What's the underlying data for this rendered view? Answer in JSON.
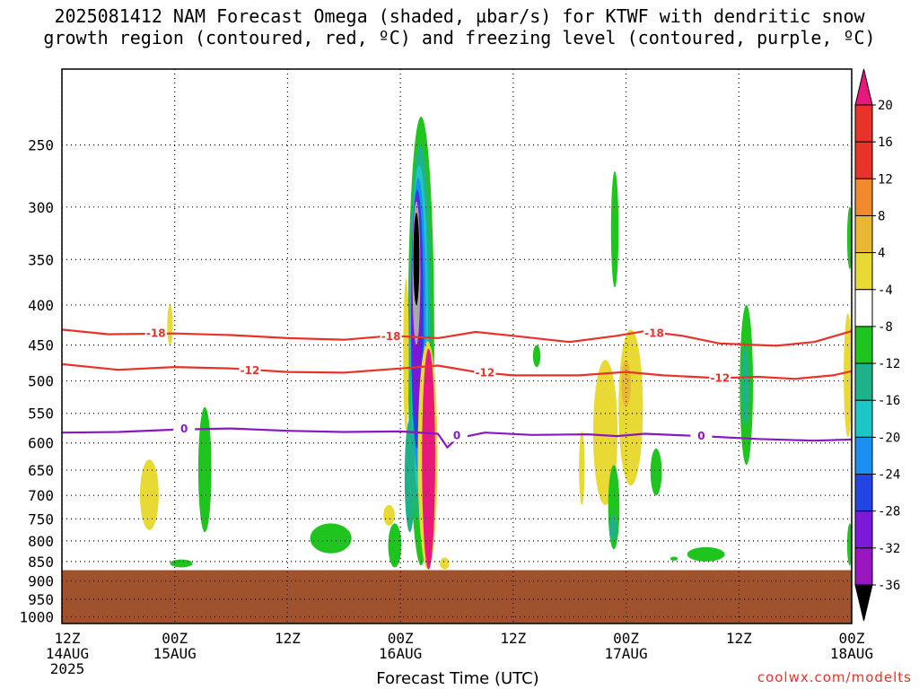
{
  "title": {
    "line1": "2025081412 NAM Forecast Omega (shaded, µbar/s) for KTWF with dendritic snow",
    "line2": "growth region (contoured, red, ºC) and freezing level (contoured, purple, ºC)"
  },
  "credit": "coolwx.com/modelts",
  "chart_data": {
    "type": "heatmap",
    "xlabel": "Forecast Time (UTC)",
    "ylabel": "",
    "x_ticks": [
      {
        "hour": 0,
        "lines": [
          "12Z",
          "14AUG",
          "2025"
        ]
      },
      {
        "hour": 12,
        "lines": [
          "00Z",
          "15AUG"
        ]
      },
      {
        "hour": 24,
        "lines": [
          "12Z"
        ]
      },
      {
        "hour": 36,
        "lines": [
          "00Z",
          "16AUG"
        ]
      },
      {
        "hour": 48,
        "lines": [
          "12Z"
        ]
      },
      {
        "hour": 60,
        "lines": [
          "00Z",
          "17AUG"
        ]
      },
      {
        "hour": 72,
        "lines": [
          "12Z"
        ]
      },
      {
        "hour": 84,
        "lines": [
          "00Z",
          "18AUG"
        ]
      }
    ],
    "xlim_hours": [
      0,
      84
    ],
    "y_ticks": [
      250,
      300,
      350,
      400,
      450,
      500,
      550,
      600,
      650,
      700,
      750,
      800,
      850,
      900,
      950,
      1000
    ],
    "ylim_hpa": [
      200,
      1020
    ],
    "y_scale": "log",
    "grid": true,
    "terrain": {
      "top_hpa": 872,
      "color": "#a0522d"
    },
    "colorbar": {
      "levels": [
        20,
        16,
        12,
        8,
        4,
        -4,
        -8,
        -12,
        -16,
        -20,
        -24,
        -28,
        -32,
        -36
      ],
      "colors": [
        "#e8332a",
        "#e8332a",
        "#f08a2c",
        "#e9b734",
        "#e8d935",
        "#ffffff",
        "#1fc41f",
        "#1fb28a",
        "#1dc6c6",
        "#1c90f0",
        "#2244e0",
        "#7a1ad8",
        "#9a16c0",
        "#a8a8a8",
        "#000000"
      ],
      "top_color": "#e8197d",
      "bottom_color": "#000000"
    },
    "contours": [
      {
        "name": "-18",
        "color": "#e8332a",
        "points": [
          [
            0,
            430
          ],
          [
            5,
            436
          ],
          [
            12,
            435
          ],
          [
            18,
            437
          ],
          [
            24,
            441
          ],
          [
            30,
            443
          ],
          [
            35,
            438
          ],
          [
            40,
            441
          ],
          [
            44,
            433
          ],
          [
            48,
            438
          ],
          [
            54,
            446
          ],
          [
            59,
            438
          ],
          [
            62,
            432
          ],
          [
            66,
            438
          ],
          [
            70,
            448
          ],
          [
            76,
            451
          ],
          [
            80,
            446
          ],
          [
            84,
            432
          ]
        ],
        "labels": [
          [
            10,
            435
          ],
          [
            35,
            439
          ],
          [
            63,
            435
          ]
        ]
      },
      {
        "name": "-12",
        "color": "#e8332a",
        "points": [
          [
            0,
            476
          ],
          [
            6,
            484
          ],
          [
            12,
            480
          ],
          [
            18,
            482
          ],
          [
            24,
            487
          ],
          [
            30,
            488
          ],
          [
            36,
            482
          ],
          [
            40,
            478
          ],
          [
            44,
            487
          ],
          [
            48,
            492
          ],
          [
            55,
            492
          ],
          [
            60,
            487
          ],
          [
            64,
            492
          ],
          [
            70,
            496
          ],
          [
            74,
            494
          ],
          [
            78,
            497
          ],
          [
            82,
            492
          ],
          [
            84,
            486
          ]
        ],
        "labels": [
          [
            20,
            485
          ],
          [
            45,
            488
          ],
          [
            70,
            496
          ]
        ]
      },
      {
        "name": "0",
        "color": "#8a18c0",
        "points": [
          [
            0,
            582
          ],
          [
            6,
            581
          ],
          [
            12,
            577
          ],
          [
            18,
            575
          ],
          [
            24,
            579
          ],
          [
            30,
            581
          ],
          [
            36,
            580
          ],
          [
            40,
            584
          ],
          [
            41,
            608
          ],
          [
            42,
            592
          ],
          [
            45,
            582
          ],
          [
            50,
            586
          ],
          [
            56,
            585
          ],
          [
            59,
            588
          ],
          [
            62,
            584
          ],
          [
            68,
            588
          ],
          [
            74,
            593
          ],
          [
            80,
            596
          ],
          [
            84,
            594
          ]
        ],
        "labels": [
          [
            13,
            576
          ],
          [
            42,
            587
          ],
          [
            68,
            588
          ]
        ]
      }
    ],
    "omega_regions": [
      {
        "level": "-8",
        "color": "#1fc41f",
        "cx": 38.2,
        "cy": 530,
        "rx": 1.4,
        "ry": 300,
        "hpa_top": 230,
        "hpa_bot": 860
      },
      {
        "level": "-12",
        "color": "#1fb28a",
        "cx": 38.1,
        "cy": 500,
        "rx": 1.15,
        "ry": 240,
        "hpa_top": 250,
        "hpa_bot": 760
      },
      {
        "level": "-16",
        "color": "#1dc6c6",
        "cx": 38.0,
        "cy": 480,
        "rx": 0.95,
        "ry": 210,
        "hpa_top": 265,
        "hpa_bot": 700
      },
      {
        "level": "-20",
        "color": "#1c90f0",
        "cx": 37.9,
        "cy": 460,
        "rx": 0.8,
        "ry": 185,
        "hpa_top": 275,
        "hpa_bot": 650
      },
      {
        "level": "-24",
        "color": "#2244e0",
        "cx": 37.8,
        "cy": 440,
        "rx": 0.66,
        "ry": 160,
        "hpa_top": 285,
        "hpa_bot": 610
      },
      {
        "level": "-28",
        "color": "#7a1ad8",
        "cx": 37.7,
        "cy": 420,
        "rx": 0.55,
        "ry": 140,
        "hpa_top": 290,
        "hpa_bot": 560
      },
      {
        "level": "-32",
        "color": "#a8a8a8",
        "cx": 37.7,
        "cy": 370,
        "rx": 0.42,
        "ry": 80,
        "hpa_top": 295,
        "hpa_bot": 450
      },
      {
        "level": "-36",
        "color": "#000000",
        "cx": 37.7,
        "cy": 350,
        "rx": 0.32,
        "ry": 55,
        "hpa_top": 305,
        "hpa_bot": 400
      },
      {
        "level": "-12b",
        "color": "#1fb28a",
        "cx": 37.0,
        "cy": 640,
        "rx": 0.55,
        "ry": 100,
        "hpa_top": 560,
        "hpa_bot": 780
      },
      {
        "level": "8",
        "color": "#e8d935",
        "cx": 38.9,
        "cy": 660,
        "rx": 1.05,
        "ry": 210,
        "hpa_top": 445,
        "hpa_bot": 870
      },
      {
        "level": "20",
        "color": "#e8197d",
        "cx": 39.0,
        "cy": 660,
        "rx": 0.7,
        "ry": 195,
        "hpa_top": 455,
        "hpa_bot": 870
      },
      {
        "level": "4",
        "color": "#e8d935",
        "cx": 36.6,
        "cy": 450,
        "rx": 0.3,
        "ry": 100,
        "hpa_top": 370,
        "hpa_bot": 580
      },
      {
        "level": "-8",
        "color": "#1fc41f",
        "cx": 15.2,
        "cy": 660,
        "rx": 0.7,
        "ry": 95,
        "hpa_top": 540,
        "hpa_bot": 780
      },
      {
        "level": "-8",
        "color": "#1fc41f",
        "cx": 28.6,
        "cy": 805,
        "rx": 2.2,
        "ry": 28,
        "hpa_top": 760,
        "hpa_bot": 830
      },
      {
        "level": "-8",
        "color": "#1fc41f",
        "cx": 12.7,
        "cy": 855,
        "rx": 1.2,
        "ry": 10,
        "hpa_top": 845,
        "hpa_bot": 865
      },
      {
        "level": "4",
        "color": "#e8d935",
        "cx": 9.3,
        "cy": 700,
        "rx": 1.0,
        "ry": 60,
        "hpa_top": 630,
        "hpa_bot": 775
      },
      {
        "level": "4",
        "color": "#e8d935",
        "cx": 11.5,
        "cy": 420,
        "rx": 0.3,
        "ry": 22,
        "hpa_top": 400,
        "hpa_bot": 450
      },
      {
        "level": "4",
        "color": "#e8d935",
        "cx": 34.8,
        "cy": 740,
        "rx": 0.6,
        "ry": 22,
        "hpa_top": 720,
        "hpa_bot": 765
      },
      {
        "level": "-8",
        "color": "#1fc41f",
        "cx": 35.4,
        "cy": 820,
        "rx": 0.7,
        "ry": 45,
        "hpa_top": 760,
        "hpa_bot": 865
      },
      {
        "level": "4",
        "color": "#e8d935",
        "cx": 40.7,
        "cy": 855,
        "rx": 0.5,
        "ry": 16,
        "hpa_top": 840,
        "hpa_bot": 870
      },
      {
        "level": "-8",
        "color": "#1fc41f",
        "cx": 58.8,
        "cy": 310,
        "rx": 0.4,
        "ry": 45,
        "hpa_top": 270,
        "hpa_bot": 380
      },
      {
        "level": "-8",
        "color": "#1fc41f",
        "cx": 50.5,
        "cy": 465,
        "rx": 0.4,
        "ry": 12,
        "hpa_top": 450,
        "hpa_bot": 480
      },
      {
        "level": "4",
        "color": "#e8d935",
        "cx": 57.8,
        "cy": 560,
        "rx": 1.3,
        "ry": 120,
        "hpa_top": 470,
        "hpa_bot": 720
      },
      {
        "level": "4",
        "color": "#e8d935",
        "cx": 60.5,
        "cy": 500,
        "rx": 1.3,
        "ry": 90,
        "hpa_top": 430,
        "hpa_bot": 680
      },
      {
        "level": "8",
        "color": "#e9b734",
        "cx": 60.0,
        "cy": 500,
        "rx": 0.5,
        "ry": 40,
        "hpa_top": 470,
        "hpa_bot": 540
      },
      {
        "level": "4",
        "color": "#e8d935",
        "cx": 55.3,
        "cy": 610,
        "rx": 0.3,
        "ry": 90,
        "hpa_top": 580,
        "hpa_bot": 720
      },
      {
        "level": "-8",
        "color": "#1fc41f",
        "cx": 58.7,
        "cy": 735,
        "rx": 0.6,
        "ry": 80,
        "hpa_top": 640,
        "hpa_bot": 820
      },
      {
        "level": "-12",
        "color": "#1fb28a",
        "cx": 58.6,
        "cy": 770,
        "rx": 0.4,
        "ry": 40,
        "hpa_top": 740,
        "hpa_bot": 800
      },
      {
        "level": "-8",
        "color": "#1fc41f",
        "cx": 63.2,
        "cy": 660,
        "rx": 0.6,
        "ry": 40,
        "hpa_top": 610,
        "hpa_bot": 700
      },
      {
        "level": "-8",
        "color": "#1fc41f",
        "cx": 68.5,
        "cy": 832,
        "rx": 2.0,
        "ry": 12,
        "hpa_top": 815,
        "hpa_bot": 850
      },
      {
        "level": "-8",
        "color": "#1fc41f",
        "cx": 65.1,
        "cy": 843,
        "rx": 0.4,
        "ry": 4,
        "hpa_top": 838,
        "hpa_bot": 848
      },
      {
        "level": "-8",
        "color": "#1fc41f",
        "cx": 72.8,
        "cy": 520,
        "rx": 0.7,
        "ry": 110,
        "hpa_top": 400,
        "hpa_bot": 640
      },
      {
        "level": "-12",
        "color": "#1fb28a",
        "cx": 72.7,
        "cy": 510,
        "rx": 0.4,
        "ry": 60,
        "hpa_top": 450,
        "hpa_bot": 570
      },
      {
        "level": "-8",
        "color": "#1fc41f",
        "cx": 83.8,
        "cy": 330,
        "rx": 0.2,
        "ry": 30,
        "hpa_top": 300,
        "hpa_bot": 360
      },
      {
        "level": "4",
        "color": "#e8d935",
        "cx": 83.6,
        "cy": 510,
        "rx": 0.45,
        "ry": 90,
        "hpa_top": 410,
        "hpa_bot": 590
      },
      {
        "level": "-8",
        "color": "#1fc41f",
        "cx": 83.8,
        "cy": 800,
        "rx": 0.2,
        "ry": 45,
        "hpa_top": 760,
        "hpa_bot": 860
      }
    ]
  }
}
